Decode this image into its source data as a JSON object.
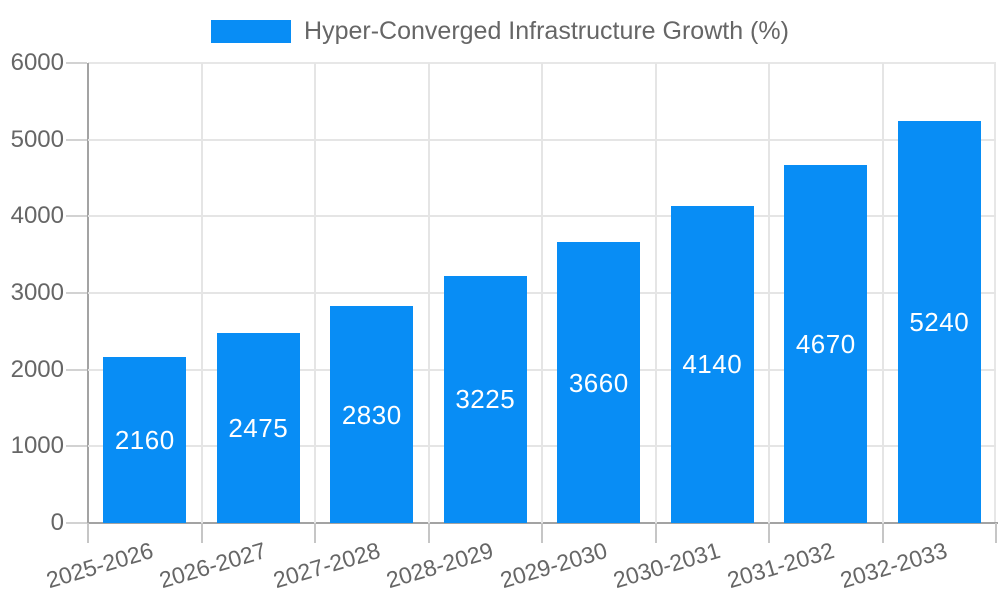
{
  "chart_data": {
    "type": "bar",
    "title": "Hyper-Converged Infrastructure Growth (%)",
    "categories": [
      "2025-2026",
      "2026-2027",
      "2027-2028",
      "2028-2029",
      "2029-2030",
      "2030-2031",
      "2031-2032",
      "2032-2033"
    ],
    "series": [
      {
        "name": "Hyper-Converged Infrastructure Growth (%)",
        "values": [
          2160,
          2475,
          2830,
          3225,
          3660,
          4140,
          4670,
          5240
        ]
      }
    ],
    "values": [
      2160,
      2475,
      2830,
      3225,
      3660,
      4140,
      4670,
      5240
    ],
    "xlabel": "",
    "ylabel": "",
    "ylim": [
      0,
      6000
    ],
    "yticks": [
      0,
      1000,
      2000,
      3000,
      4000,
      5000,
      6000
    ],
    "grid": true,
    "legend_position": "top",
    "bar_color": "#088df5",
    "value_label_color": "#ffffff",
    "axis_text_color": "#666666",
    "x_label_rotation_deg": -16.5
  }
}
